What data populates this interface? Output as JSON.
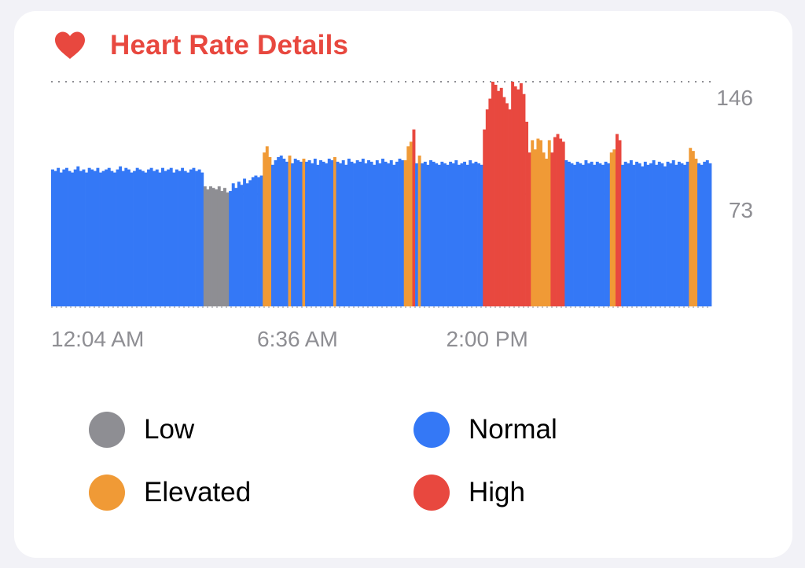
{
  "header": {
    "title": "Heart Rate Details",
    "icon": "heart-icon",
    "title_color": "#e8483f"
  },
  "legend": [
    {
      "key": "low",
      "label": "Low",
      "color": "#8e8e93"
    },
    {
      "key": "normal",
      "label": "Normal",
      "color": "#3478f6"
    },
    {
      "key": "elevated",
      "label": "Elevated",
      "color": "#f09a36"
    },
    {
      "key": "high",
      "label": "High",
      "color": "#e8483f"
    }
  ],
  "chart_data": {
    "type": "bar",
    "x_tick_labels": [
      "12:04 AM",
      "6:36 AM",
      "2:00 PM"
    ],
    "x_tick_positions": [
      0,
      73,
      140
    ],
    "y_ticks": [
      73,
      146
    ],
    "y_tick_labels": [
      "73",
      "146"
    ],
    "ylim": [
      0,
      146
    ],
    "grid": "dotted horizontal lines at y ticks",
    "legend_placement": "bottom",
    "segments": [
      {
        "category": "normal",
        "values": [
          89,
          88,
          90,
          87,
          89,
          90,
          88,
          87,
          89,
          91,
          88,
          89,
          87,
          90,
          89,
          88,
          90,
          87,
          88,
          89,
          90,
          88,
          87,
          89,
          91,
          88,
          90,
          89,
          87,
          88,
          90,
          89,
          88,
          87,
          89,
          90,
          88,
          89,
          87,
          90,
          88,
          89,
          90,
          87,
          89,
          88,
          90,
          88,
          87,
          89,
          90,
          88,
          89,
          87
        ]
      },
      {
        "category": "low",
        "values": [
          78,
          76,
          78,
          77,
          76,
          78,
          75,
          77,
          74
        ]
      },
      {
        "category": "normal",
        "values": [
          75,
          80,
          77,
          81,
          79,
          83,
          80,
          82,
          84,
          85,
          84,
          85
        ]
      },
      {
        "category": "elevated",
        "values": [
          100,
          104,
          97
        ]
      },
      {
        "category": "normal",
        "values": [
          92,
          95,
          97,
          98,
          96,
          94
        ]
      },
      {
        "category": "elevated",
        "values": [
          98
        ]
      },
      {
        "category": "normal",
        "values": [
          93,
          96,
          95,
          94
        ]
      },
      {
        "category": "elevated",
        "values": [
          96
        ]
      },
      {
        "category": "normal",
        "values": [
          94,
          95,
          93,
          96,
          92,
          95,
          94,
          93,
          96,
          95
        ]
      },
      {
        "category": "elevated",
        "values": [
          97
        ]
      },
      {
        "category": "normal",
        "values": [
          94,
          93,
          95,
          92,
          96,
          94,
          93,
          95,
          94,
          96,
          93,
          95,
          94,
          92,
          95,
          93,
          96,
          94,
          93,
          95,
          92,
          94,
          96,
          95
        ]
      },
      {
        "category": "elevated",
        "values": [
          95,
          104,
          107
        ]
      },
      {
        "category": "high",
        "values": [
          115
        ]
      },
      {
        "category": "normal",
        "values": [
          93
        ]
      },
      {
        "category": "elevated",
        "values": [
          98
        ]
      },
      {
        "category": "normal",
        "values": [
          93,
          94,
          92,
          95,
          94,
          93,
          92,
          94,
          93,
          92,
          94,
          93,
          95,
          92,
          93,
          94,
          92,
          95,
          93,
          94,
          93,
          92
        ]
      },
      {
        "category": "high",
        "values": [
          115,
          128,
          135,
          146,
          144,
          140,
          142,
          136,
          132,
          128,
          146,
          143,
          141,
          145,
          138,
          120,
          100
        ]
      },
      {
        "category": "elevated",
        "values": [
          108,
          102,
          109,
          108,
          100,
          96,
          108
        ]
      },
      {
        "category": "high",
        "values": [
          100,
          110,
          112,
          109,
          107
        ]
      },
      {
        "category": "normal",
        "values": [
          95,
          94,
          93,
          92,
          94,
          93,
          92,
          95,
          93,
          94,
          92,
          94,
          93,
          92,
          94,
          93
        ]
      },
      {
        "category": "elevated",
        "values": [
          100,
          102
        ]
      },
      {
        "category": "high",
        "values": [
          112,
          108
        ]
      },
      {
        "category": "normal",
        "values": [
          92,
          94,
          93,
          95,
          92,
          94,
          93,
          91,
          94,
          92,
          93,
          95,
          92,
          94,
          93,
          91,
          94,
          93,
          95,
          92,
          94,
          93,
          92,
          94
        ]
      },
      {
        "category": "elevated",
        "values": [
          103,
          101,
          96
        ]
      },
      {
        "category": "normal",
        "values": [
          93,
          92,
          94,
          95,
          93
        ]
      }
    ]
  }
}
